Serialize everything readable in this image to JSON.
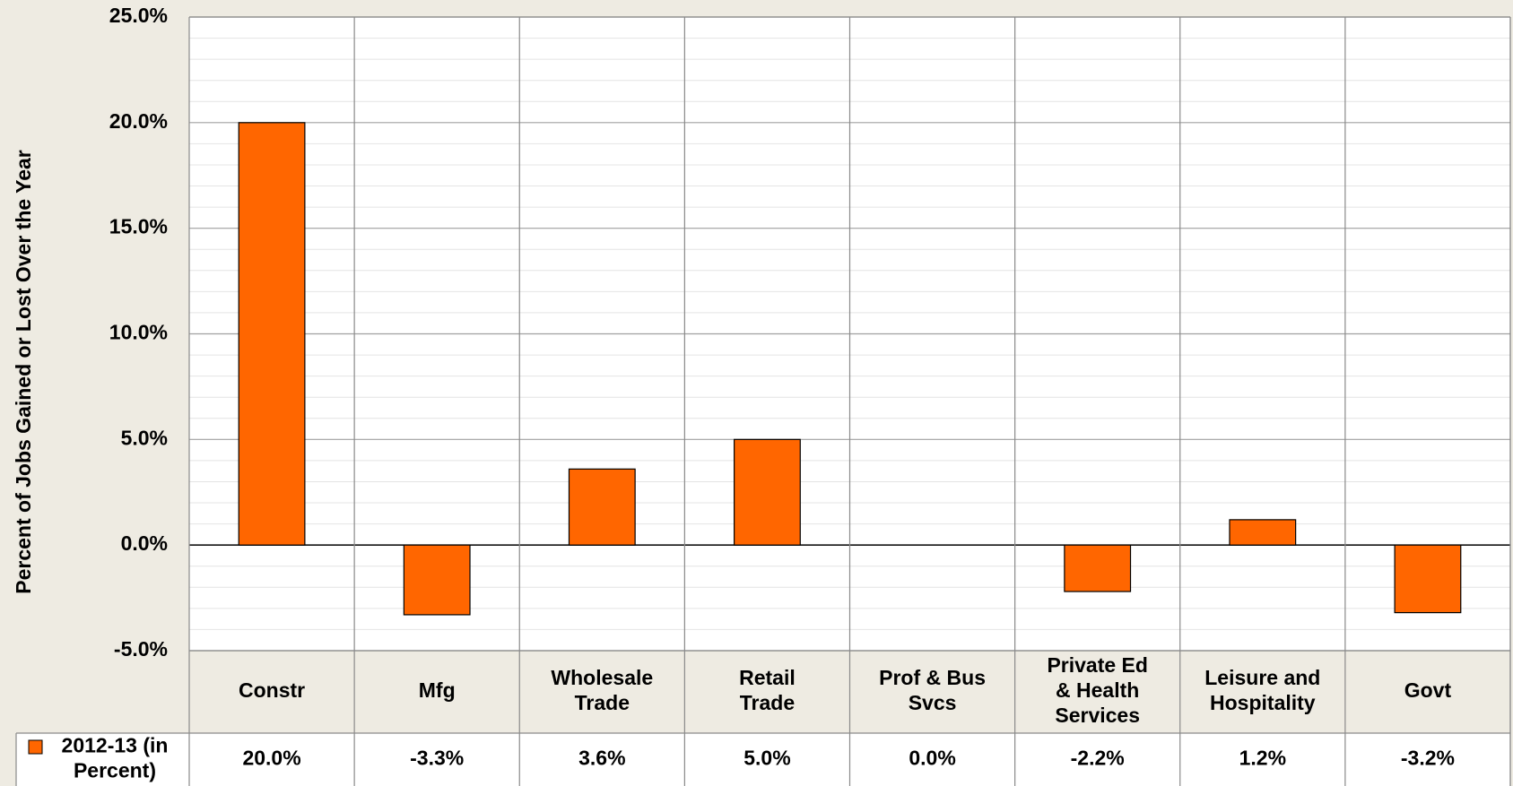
{
  "chart_data": {
    "type": "bar",
    "y_label": "Percent of Jobs Gained or Lost Over the Year",
    "categories": [
      "Constr",
      "Mfg",
      "Wholesale Trade",
      "Retail Trade",
      "Prof & Bus Svcs",
      "Private Ed & Health Services",
      "Leisure and Hospitality",
      "Govt"
    ],
    "series": [
      {
        "name": "2012-13 (in Percent)",
        "color": "#ff6600",
        "values": [
          20.0,
          -3.3,
          3.6,
          5.0,
          0.0,
          -2.2,
          1.2,
          -3.2
        ],
        "value_labels": [
          "20.0%",
          "-3.3%",
          "3.6%",
          "5.0%",
          "0.0%",
          "-2.2%",
          "1.2%",
          "-3.2%"
        ]
      }
    ],
    "ylim": [
      -5,
      25
    ],
    "yticks": [
      {
        "value": -5,
        "label": "-5.0%"
      },
      {
        "value": 0,
        "label": "0.0%"
      },
      {
        "value": 5,
        "label": "5.0%"
      },
      {
        "value": 10,
        "label": "10.0%"
      },
      {
        "value": 15,
        "label": "15.0%"
      },
      {
        "value": 20,
        "label": "20.0%"
      },
      {
        "value": 25,
        "label": "25.0%"
      }
    ],
    "grid": true,
    "legend": "data-table"
  }
}
